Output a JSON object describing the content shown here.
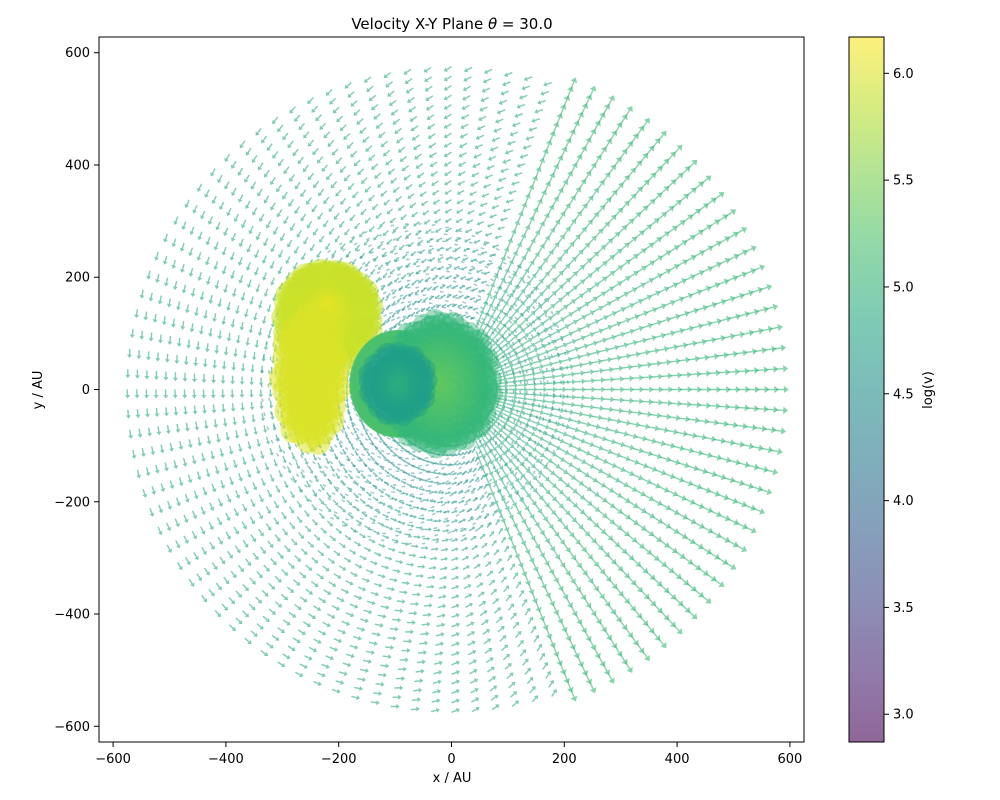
{
  "chart_data": {
    "type": "quiver",
    "title_text": "Velocity X-Y Plane ",
    "title_theta": "θ",
    "title_value": " =  30.0",
    "xlabel": "x / AU",
    "ylabel": "y / AU",
    "xlim": [
      -625,
      625
    ],
    "ylim": [
      -628,
      628
    ],
    "x_ticks": [
      -600,
      -400,
      -200,
      0,
      200,
      400,
      600
    ],
    "y_ticks": [
      -600,
      -400,
      -200,
      0,
      200,
      400,
      600
    ],
    "x_tick_labels": [
      "−600",
      "−400",
      "−200",
      "0",
      "200",
      "400",
      "600"
    ],
    "y_tick_labels": [
      "−600",
      "−400",
      "−200",
      "0",
      "200",
      "400",
      "600"
    ],
    "outer_radius": 575,
    "colorbar": {
      "label": "log(v)",
      "range": [
        2.87,
        6.17
      ],
      "ticks": [
        3.0,
        3.5,
        4.0,
        4.5,
        5.0,
        5.5,
        6.0
      ],
      "tick_labels": [
        "3.0",
        "3.5",
        "4.0",
        "4.5",
        "5.0",
        "5.5",
        "6.0"
      ],
      "colormap": "viridis",
      "alpha": 0.6
    },
    "regions": [
      {
        "name": "outer-field",
        "log_v": 4.9
      },
      {
        "name": "right-radial-fan",
        "log_v": 5.1
      },
      {
        "name": "high-velocity-lobe",
        "center": [
          -220,
          170
        ],
        "log_v": 6.1
      },
      {
        "name": "central-core",
        "center": [
          -20,
          10
        ],
        "log_v": 5.4
      },
      {
        "name": "inner-ring",
        "center": [
          -95,
          10
        ],
        "log_v": 4.7
      }
    ]
  }
}
